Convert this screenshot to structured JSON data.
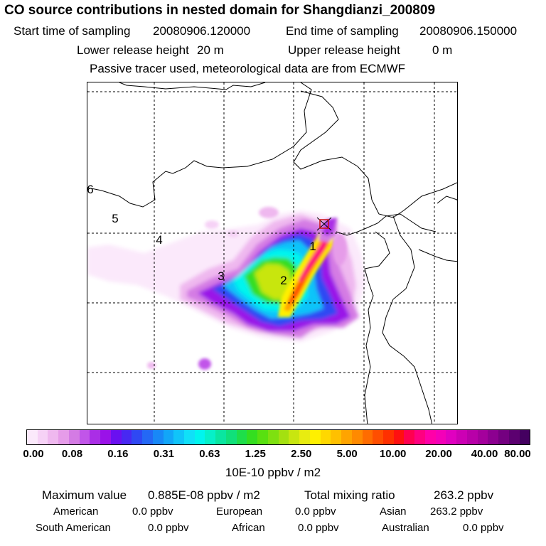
{
  "header": {
    "title": "CO  source contributions in nested domain for Shangdianzi_200809",
    "start_label": "Start time of sampling",
    "start_value": "20080906.120000",
    "end_label": "End time of sampling",
    "end_value": "20080906.150000",
    "lower_label": "Lower release height",
    "lower_value": "20 m",
    "upper_label": "Upper release height",
    "upper_value": "0 m",
    "tracer_note": "Passive tracer used, meteorological data are from ECMWF"
  },
  "map": {
    "zone_labels": [
      "1",
      "2",
      "3",
      "4",
      "5",
      "6"
    ],
    "receptor": "Shangdianzi"
  },
  "colorbar": {
    "ticks": [
      "0.00",
      "0.08",
      "0.16",
      "0.31",
      "0.63",
      "1.25",
      "2.50",
      "5.00",
      "10.00",
      "20.00",
      "40.00",
      "80.00"
    ],
    "unit": "10E-10 ppbv / m2",
    "colors": [
      "#fbe9fb",
      "#f6d2f6",
      "#efb8ef",
      "#e69ce9",
      "#d47be4",
      "#c155e9",
      "#aa2ee6",
      "#9a12e8",
      "#6a10f0",
      "#4828f2",
      "#2f48f3",
      "#2468f5",
      "#1888f7",
      "#12a6f8",
      "#10c4f9",
      "#10e0f8",
      "#00f5ee",
      "#06f0c8",
      "#0ae6a0",
      "#10e07a",
      "#1ede4a",
      "#34de20",
      "#58e010",
      "#7ee010",
      "#a4e010",
      "#c8e610",
      "#e8ec10",
      "#fff000",
      "#ffd800",
      "#ffc000",
      "#ffa400",
      "#ff8a00",
      "#ff6c00",
      "#ff4e00",
      "#ff3000",
      "#ff1010",
      "#ff0050",
      "#ff0080",
      "#ff00a8",
      "#f400b8",
      "#e000c0",
      "#cc00b4",
      "#b800a8",
      "#a4009c",
      "#8c0090",
      "#740080",
      "#5c0070",
      "#440060"
    ]
  },
  "stats": {
    "max_label": "Maximum value",
    "max_value": "0.885E-08 ppbv / m2",
    "total_label": "Total mixing ratio",
    "total_value": "263.2 ppbv",
    "regions": [
      {
        "name": "American",
        "value": "0.0 ppbv"
      },
      {
        "name": "European",
        "value": "0.0 ppbv"
      },
      {
        "name": "Asian",
        "value": "263.2 ppbv"
      },
      {
        "name": "South American",
        "value": "0.0 ppbv"
      },
      {
        "name": "African",
        "value": "0.0 ppbv"
      },
      {
        "name": "Australian",
        "value": "0.0 ppbv"
      }
    ]
  }
}
